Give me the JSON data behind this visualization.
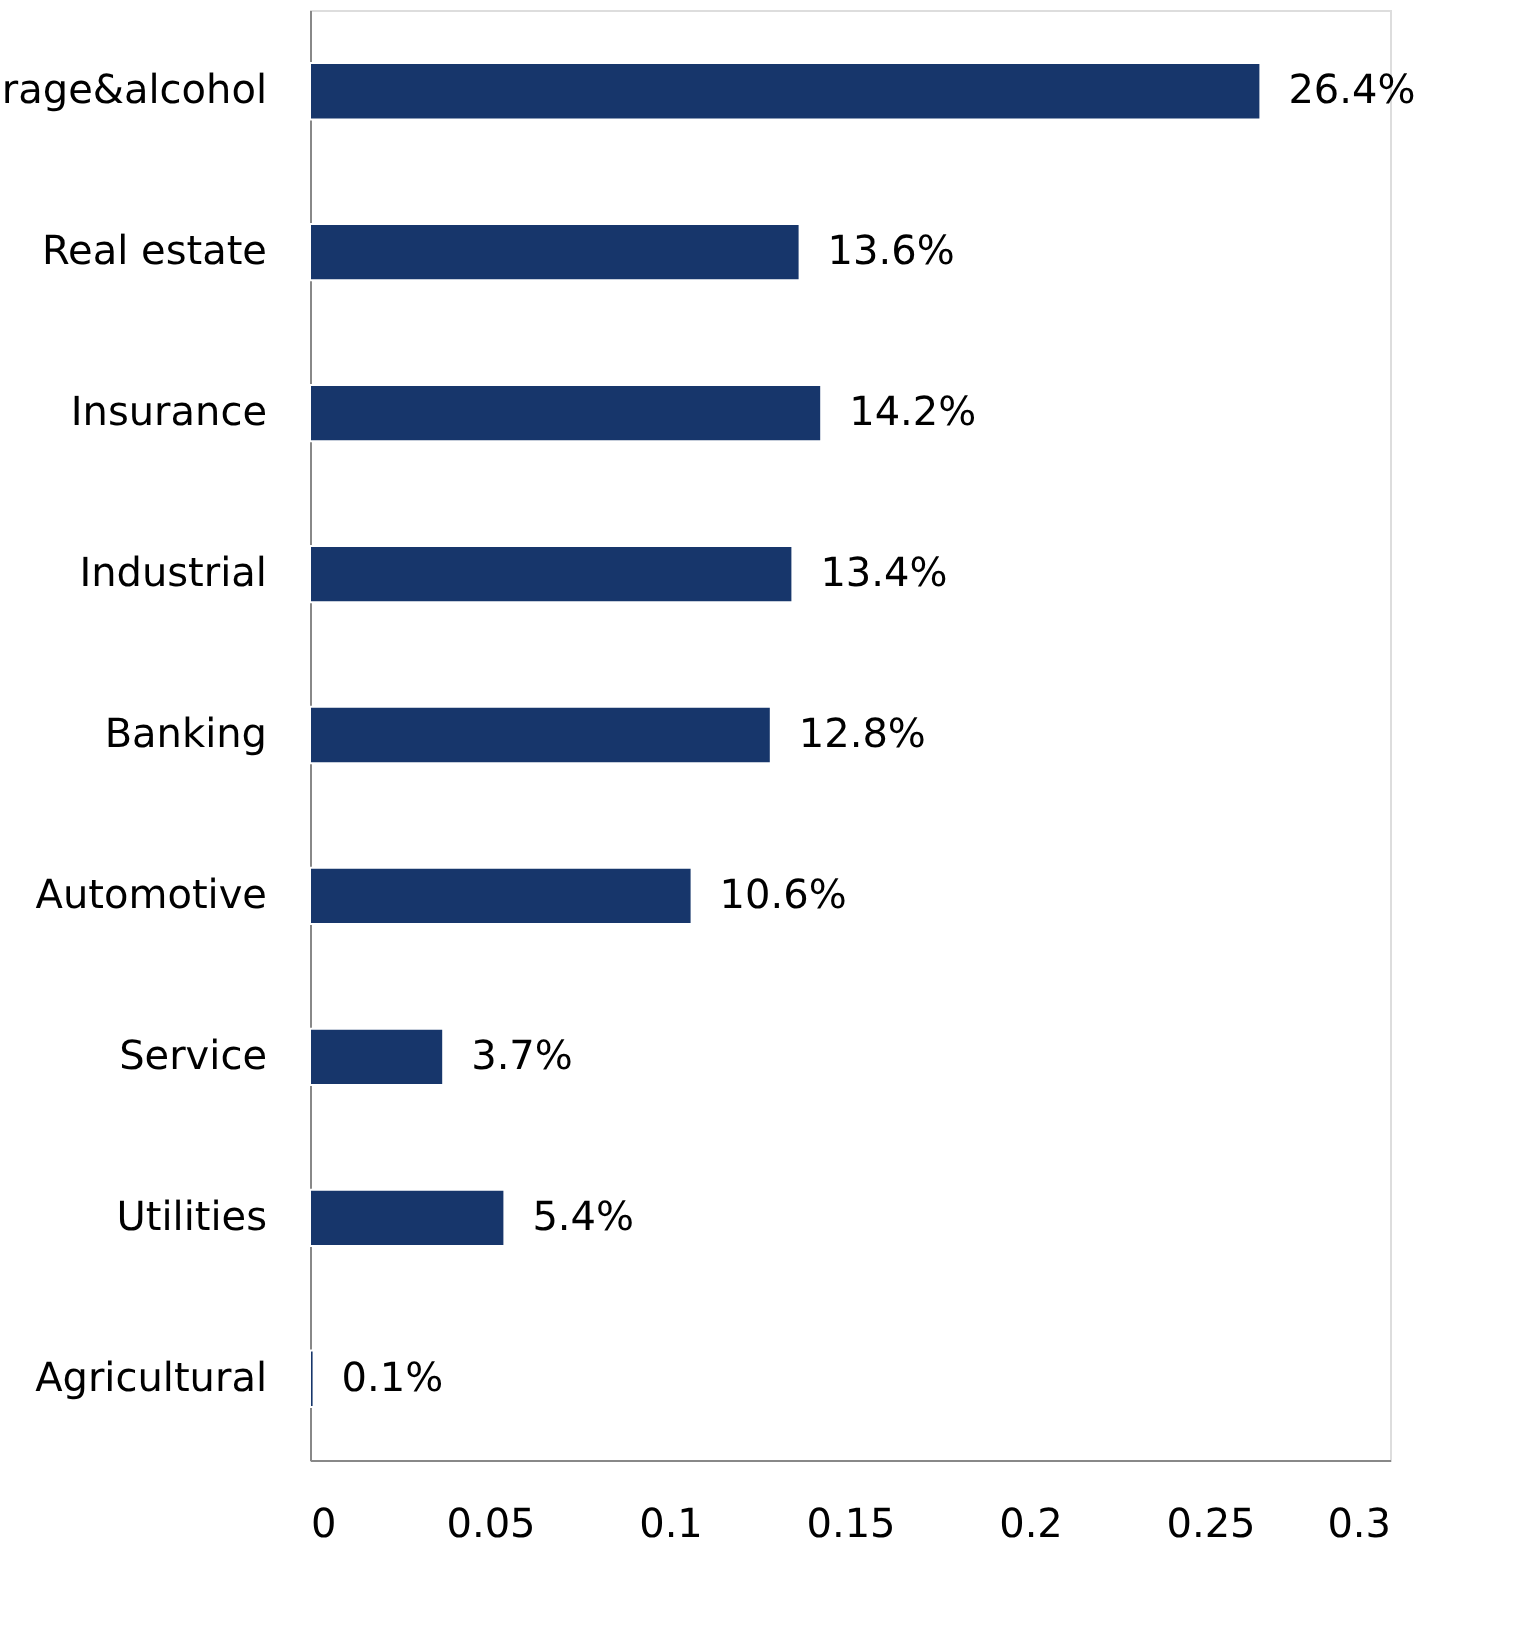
{
  "chart_data": {
    "type": "bar",
    "orientation": "horizontal",
    "categories": [
      "rage&alcohol",
      "Real estate",
      "Insurance",
      "Industrial",
      "Banking",
      "Automotive",
      "Service",
      "Utilities",
      "Agricultural"
    ],
    "values": [
      0.264,
      0.136,
      0.142,
      0.134,
      0.128,
      0.106,
      0.037,
      0.054,
      0.001
    ],
    "value_labels": [
      "26.4%",
      "13.6%",
      "14.2%",
      "13.4%",
      "12.8%",
      "10.6%",
      "3.7%",
      "5.4%",
      "0.1%"
    ],
    "color": "#17366b",
    "xlim": [
      0,
      0.3
    ],
    "xticks": [
      0,
      0.05,
      0.1,
      0.15,
      0.2,
      0.25,
      0.3
    ],
    "grid": false
  }
}
